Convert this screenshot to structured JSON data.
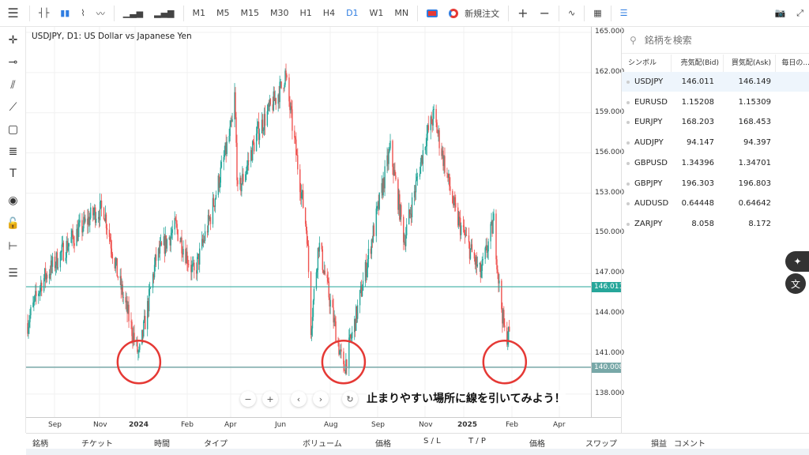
{
  "toolbar": {
    "chart_types": [
      "bar-chart-icon",
      "candlestick-icon",
      "area-chart-icon",
      "line-chart-icon",
      "volume-icon",
      "tick-volume-icon"
    ],
    "timeframes": [
      "M1",
      "M5",
      "M15",
      "M30",
      "H1",
      "H4",
      "D1",
      "W1",
      "MN"
    ],
    "active_timeframe": "D1",
    "new_order": "新規注文"
  },
  "chart": {
    "title": "USDJPY, D1: US Dollar vs Japanese Yen",
    "price_labels": [
      "165.000",
      "162.000",
      "159.000",
      "156.000",
      "153.000",
      "150.000",
      "147.000",
      "144.000",
      "141.000",
      "138.000"
    ],
    "date_labels": [
      {
        "t": "Sep",
        "bold": false
      },
      {
        "t": "Nov",
        "bold": false
      },
      {
        "t": "2024",
        "bold": true
      },
      {
        "t": "Feb",
        "bold": false
      },
      {
        "t": "Apr",
        "bold": false
      },
      {
        "t": "Jun",
        "bold": false
      },
      {
        "t": "Aug",
        "bold": false
      },
      {
        "t": "Sep",
        "bold": false
      },
      {
        "t": "Nov",
        "bold": false
      },
      {
        "t": "2025",
        "bold": true
      },
      {
        "t": "Feb",
        "bold": false
      },
      {
        "t": "Apr",
        "bold": false
      }
    ],
    "bid_line": {
      "value": "146.011",
      "color": "#26a69a"
    },
    "support_line": {
      "value": "140.008",
      "color": "#78a8a8"
    },
    "caption": "止まりやすい場所に線を引いてみよう！",
    "circle_color": "#e53935",
    "up_color": "#26a69a",
    "down_color": "#ef5350"
  },
  "chart_data": {
    "type": "candlestick",
    "symbol": "USDJPY",
    "timeframe": "D1",
    "ylim": [
      137,
      165.5
    ],
    "xlim": [
      "2023-08-07",
      "2025-04-17"
    ],
    "approx_close_path": [
      [
        "2023-08-07",
        143.3
      ],
      [
        "2023-08-25",
        146.4
      ],
      [
        "2023-09-29",
        149.3
      ],
      [
        "2023-10-31",
        151.5
      ],
      [
        "2023-11-13",
        151.8
      ],
      [
        "2023-12-01",
        146.8
      ],
      [
        "2023-12-28",
        140.8
      ],
      [
        "2024-01-19",
        148.1
      ],
      [
        "2024-02-13",
        150.5
      ],
      [
        "2024-03-08",
        146.9
      ],
      [
        "2024-03-29",
        151.3
      ],
      [
        "2024-04-26",
        158.2
      ],
      [
        "2024-04-29",
        160.2
      ],
      [
        "2024-05-03",
        152.9
      ],
      [
        "2024-05-29",
        157.6
      ],
      [
        "2024-06-28",
        160.9
      ],
      [
        "2024-07-03",
        161.9
      ],
      [
        "2024-07-31",
        150.0
      ],
      [
        "2024-08-05",
        143.0
      ],
      [
        "2024-08-15",
        149.3
      ],
      [
        "2024-09-16",
        139.7
      ],
      [
        "2024-10-01",
        143.5
      ],
      [
        "2024-11-15",
        156.3
      ],
      [
        "2024-12-03",
        149.5
      ],
      [
        "2024-12-31",
        157.2
      ],
      [
        "2025-01-10",
        158.8
      ],
      [
        "2025-02-07",
        151.4
      ],
      [
        "2025-03-11",
        146.9
      ],
      [
        "2025-03-28",
        150.9
      ],
      [
        "2025-04-04",
        146.0
      ],
      [
        "2025-04-11",
        142.5
      ],
      [
        "2025-04-17",
        142.4
      ]
    ],
    "horizontal_lines": [
      146.011,
      140.008
    ],
    "highlighted_lows": [
      "2023-12-28",
      "2024-09-16",
      "2025-04-11"
    ]
  },
  "watchlist": {
    "search_placeholder": "銘柄を検索",
    "columns": [
      "シンボル",
      "売気配(Bid)",
      "買気配(Ask)",
      "毎日の..."
    ],
    "rows": [
      {
        "symbol": "USDJPY",
        "bid": "146.011",
        "ask": "146.149"
      },
      {
        "symbol": "EURUSD",
        "bid": "1.15208",
        "ask": "1.15309"
      },
      {
        "symbol": "EURJPY",
        "bid": "168.203",
        "ask": "168.453"
      },
      {
        "symbol": "AUDJPY",
        "bid": "94.147",
        "ask": "94.397"
      },
      {
        "symbol": "GBPUSD",
        "bid": "1.34396",
        "ask": "1.34701"
      },
      {
        "symbol": "GBPJPY",
        "bid": "196.303",
        "ask": "196.803"
      },
      {
        "symbol": "AUDUSD",
        "bid": "0.64448",
        "ask": "0.64642"
      },
      {
        "symbol": "ZARJPY",
        "bid": "8.058",
        "ask": "8.172"
      }
    ]
  },
  "positions": {
    "columns": [
      "銘柄",
      "チケット",
      "時間",
      "タイプ",
      "ボリューム",
      "価格",
      "S / L",
      "T / P",
      "価格",
      "スワップ",
      "損益",
      "コメント"
    ]
  }
}
